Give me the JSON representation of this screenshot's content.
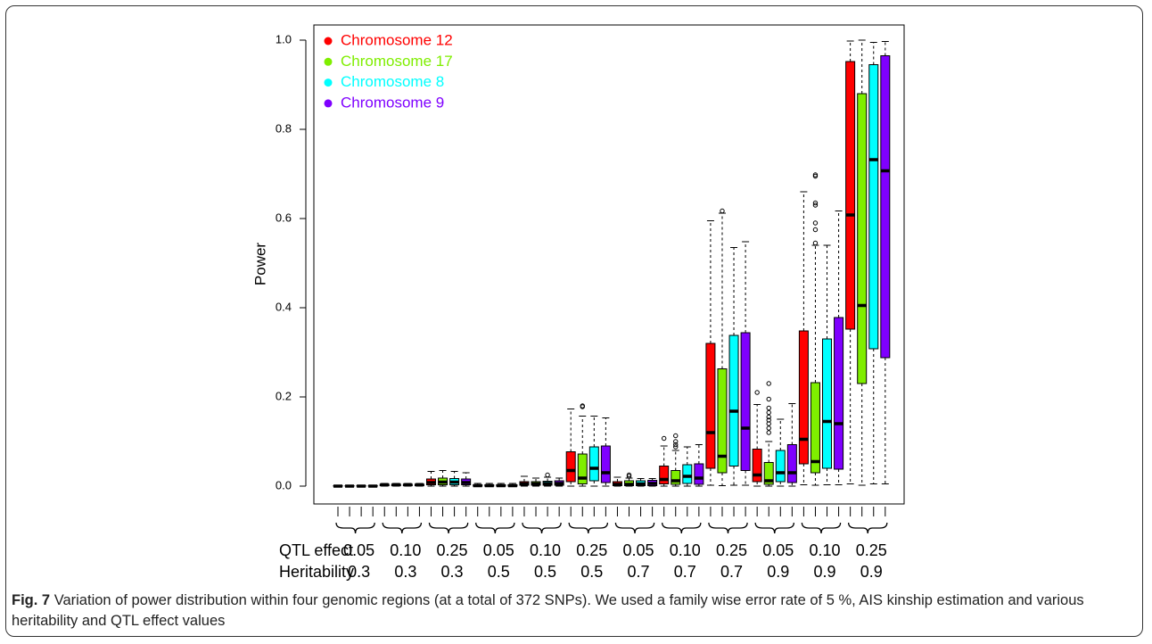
{
  "chart_data": {
    "type": "box",
    "y_label": "Power",
    "ylim": [
      -0.04,
      1.034
    ],
    "yticks": [
      {
        "value": 0,
        "label": "0.0"
      },
      0.2,
      0.4,
      0.6,
      0.8,
      {
        "value": 1,
        "label": "1.0"
      }
    ],
    "legend": "top-left",
    "x_rows": [
      {
        "label": "QTL effect",
        "values": [
          "0.05",
          "0.10",
          "0.25",
          "0.05",
          "0.10",
          "0.25",
          "0.05",
          "0.10",
          "0.25",
          "0.05",
          "0.10",
          "0.25"
        ]
      },
      {
        "label": "Heritability",
        "values": [
          "0.3",
          "0.3",
          "0.3",
          "0.5",
          "0.5",
          "0.5",
          "0.7",
          "0.7",
          "0.7",
          "0.9",
          "0.9",
          "0.9"
        ]
      }
    ],
    "series": [
      {
        "name": "Chromosome 12",
        "color": "#ff0000",
        "values": [
          {
            "low": 0,
            "q1": 0,
            "median": 0,
            "q3": 0.001,
            "high": 0.002,
            "outliers": []
          },
          {
            "low": 0,
            "q1": 0.001,
            "median": 0.003,
            "q3": 0.004,
            "high": 0.006,
            "outliers": []
          },
          {
            "low": 0,
            "q1": 0.003,
            "median": 0.008,
            "q3": 0.016,
            "high": 0.033,
            "outliers": []
          },
          {
            "low": 0,
            "q1": 0,
            "median": 0.001,
            "q3": 0.003,
            "high": 0.006,
            "outliers": []
          },
          {
            "low": 0,
            "q1": 0.002,
            "median": 0.005,
            "q3": 0.01,
            "high": 0.022,
            "outliers": []
          },
          {
            "low": 0,
            "q1": 0.01,
            "median": 0.035,
            "q3": 0.077,
            "high": 0.173,
            "outliers": []
          },
          {
            "low": 0,
            "q1": 0.001,
            "median": 0.004,
            "q3": 0.01,
            "high": 0.02,
            "outliers": []
          },
          {
            "low": 0,
            "q1": 0.005,
            "median": 0.015,
            "q3": 0.045,
            "high": 0.09,
            "outliers": [
              0.107
            ]
          },
          {
            "low": 0.002,
            "q1": 0.04,
            "median": 0.12,
            "q3": 0.32,
            "high": 0.595,
            "outliers": []
          },
          {
            "low": 0,
            "q1": 0.01,
            "median": 0.025,
            "q3": 0.083,
            "high": 0.183,
            "outliers": [
              0.21
            ]
          },
          {
            "low": 0.003,
            "q1": 0.05,
            "median": 0.105,
            "q3": 0.348,
            "high": 0.66,
            "outliers": []
          },
          {
            "low": 0.005,
            "q1": 0.352,
            "median": 0.608,
            "q3": 0.952,
            "high": 0.998,
            "outliers": []
          }
        ]
      },
      {
        "name": "Chromosome 17",
        "color": "#7fee00",
        "values": [
          {
            "low": 0,
            "q1": 0,
            "median": 0,
            "q3": 0.001,
            "high": 0.002,
            "outliers": []
          },
          {
            "low": 0,
            "q1": 0.001,
            "median": 0.003,
            "q3": 0.004,
            "high": 0.006,
            "outliers": []
          },
          {
            "low": 0,
            "q1": 0.003,
            "median": 0.009,
            "q3": 0.018,
            "high": 0.035,
            "outliers": []
          },
          {
            "low": 0,
            "q1": 0,
            "median": 0.001,
            "q3": 0.003,
            "high": 0.006,
            "outliers": []
          },
          {
            "low": 0,
            "q1": 0.002,
            "median": 0.005,
            "q3": 0.01,
            "high": 0.018,
            "outliers": []
          },
          {
            "low": 0,
            "q1": 0.005,
            "median": 0.018,
            "q3": 0.072,
            "high": 0.157,
            "outliers": [
              0.18,
              0.178
            ]
          },
          {
            "low": 0,
            "q1": 0.001,
            "median": 0.004,
            "q3": 0.012,
            "high": 0.018,
            "outliers": [
              0.025,
              0.022
            ]
          },
          {
            "low": 0,
            "q1": 0.004,
            "median": 0.012,
            "q3": 0.035,
            "high": 0.08,
            "outliers": [
              0.113,
              0.1,
              0.093,
              0.088
            ]
          },
          {
            "low": 0.001,
            "q1": 0.03,
            "median": 0.067,
            "q3": 0.263,
            "high": 0.612,
            "outliers": [
              0.617
            ]
          },
          {
            "low": 0,
            "q1": 0.004,
            "median": 0.012,
            "q3": 0.053,
            "high": 0.1,
            "outliers": [
              0.23,
              0.195,
              0.175,
              0.165,
              0.155,
              0.148,
              0.14,
              0.13,
              0.12
            ]
          },
          {
            "low": 0.002,
            "q1": 0.03,
            "median": 0.055,
            "q3": 0.232,
            "high": 0.54,
            "outliers": [
              0.698,
              0.695,
              0.635,
              0.63,
              0.59,
              0.575,
              0.545
            ]
          },
          {
            "low": 0.002,
            "q1": 0.23,
            "median": 0.405,
            "q3": 0.88,
            "high": 1.0,
            "outliers": []
          }
        ]
      },
      {
        "name": "Chromosome 8",
        "color": "#00ffff",
        "values": [
          {
            "low": 0,
            "q1": 0,
            "median": 0,
            "q3": 0.001,
            "high": 0.002,
            "outliers": []
          },
          {
            "low": 0,
            "q1": 0.001,
            "median": 0.003,
            "q3": 0.004,
            "high": 0.006,
            "outliers": []
          },
          {
            "low": 0,
            "q1": 0.003,
            "median": 0.009,
            "q3": 0.017,
            "high": 0.033,
            "outliers": []
          },
          {
            "low": 0,
            "q1": 0,
            "median": 0.001,
            "q3": 0.003,
            "high": 0.006,
            "outliers": []
          },
          {
            "low": 0,
            "q1": 0.002,
            "median": 0.006,
            "q3": 0.011,
            "high": 0.02,
            "outliers": [
              0.025
            ]
          },
          {
            "low": 0,
            "q1": 0.012,
            "median": 0.04,
            "q3": 0.088,
            "high": 0.157,
            "outliers": []
          },
          {
            "low": 0,
            "q1": 0.001,
            "median": 0.005,
            "q3": 0.012,
            "high": 0.017,
            "outliers": []
          },
          {
            "low": 0,
            "q1": 0.006,
            "median": 0.022,
            "q3": 0.048,
            "high": 0.088,
            "outliers": []
          },
          {
            "low": 0.002,
            "q1": 0.045,
            "median": 0.168,
            "q3": 0.338,
            "high": 0.535,
            "outliers": []
          },
          {
            "low": 0,
            "q1": 0.01,
            "median": 0.03,
            "q3": 0.08,
            "high": 0.15,
            "outliers": []
          },
          {
            "low": 0.003,
            "q1": 0.04,
            "median": 0.145,
            "q3": 0.33,
            "high": 0.54,
            "outliers": []
          },
          {
            "low": 0.005,
            "q1": 0.308,
            "median": 0.732,
            "q3": 0.945,
            "high": 0.995,
            "outliers": []
          }
        ]
      },
      {
        "name": "Chromosome 9",
        "color": "#7f00ff",
        "values": [
          {
            "low": 0,
            "q1": 0,
            "median": 0,
            "q3": 0.001,
            "high": 0.002,
            "outliers": []
          },
          {
            "low": 0,
            "q1": 0.001,
            "median": 0.003,
            "q3": 0.004,
            "high": 0.006,
            "outliers": []
          },
          {
            "low": 0,
            "q1": 0.003,
            "median": 0.008,
            "q3": 0.016,
            "high": 0.03,
            "outliers": []
          },
          {
            "low": 0,
            "q1": 0,
            "median": 0.001,
            "q3": 0.003,
            "high": 0.006,
            "outliers": []
          },
          {
            "low": 0,
            "q1": 0.002,
            "median": 0.006,
            "q3": 0.012,
            "high": 0.018,
            "outliers": []
          },
          {
            "low": 0,
            "q1": 0.008,
            "median": 0.03,
            "q3": 0.09,
            "high": 0.153,
            "outliers": []
          },
          {
            "low": 0,
            "q1": 0.001,
            "median": 0.006,
            "q3": 0.013,
            "high": 0.017,
            "outliers": []
          },
          {
            "low": 0,
            "q1": 0.004,
            "median": 0.018,
            "q3": 0.05,
            "high": 0.093,
            "outliers": []
          },
          {
            "low": 0.002,
            "q1": 0.035,
            "median": 0.13,
            "q3": 0.344,
            "high": 0.548,
            "outliers": []
          },
          {
            "low": 0,
            "q1": 0.008,
            "median": 0.03,
            "q3": 0.093,
            "high": 0.185,
            "outliers": []
          },
          {
            "low": 0.003,
            "q1": 0.038,
            "median": 0.14,
            "q3": 0.378,
            "high": 0.617,
            "outliers": []
          },
          {
            "low": 0.005,
            "q1": 0.288,
            "median": 0.707,
            "q3": 0.965,
            "high": 0.997,
            "outliers": []
          }
        ]
      }
    ]
  },
  "caption": {
    "label": "Fig. 7",
    "text": "Variation of power distribution within four genomic regions (at a total of 372 SNPs). We used a family wise error rate of 5 %, AIS kinship estimation and various heritability and QTL effect values"
  }
}
